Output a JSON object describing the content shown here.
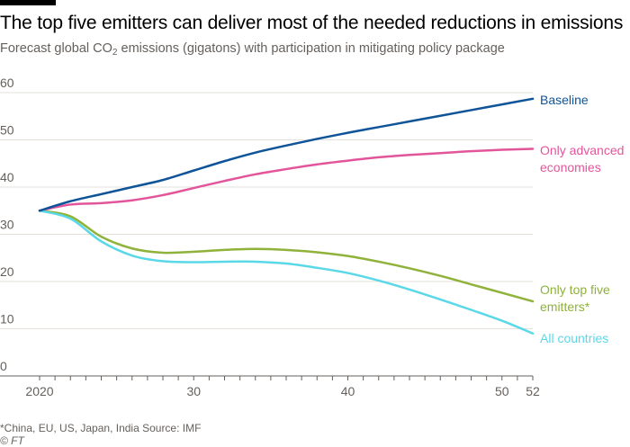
{
  "header": {
    "title": "The top five emitters can deliver most of the needed reductions in emissions",
    "subtitle_pre": "Forecast global CO",
    "subtitle_sub": "2",
    "subtitle_post": " emissions (gigatons) with participation in mitigating policy package"
  },
  "footer": {
    "footnote": "*China, EU, US, Japan, India   Source: IMF",
    "credit": "© FT"
  },
  "colors": {
    "baseline": "#0f5499",
    "advanced": "#e3559a",
    "top_five": "#8fb23a",
    "all": "#5bd8e8",
    "grid": "#e6e0da",
    "axis": "#66605c"
  },
  "chart_data": {
    "type": "line",
    "title": "The top five emitters can deliver most of the needed reductions in emissions",
    "ylabel": "",
    "xlabel": "",
    "xlim": [
      2020,
      2052
    ],
    "ylim": [
      0,
      60
    ],
    "yticks": [
      0,
      10,
      20,
      30,
      40,
      50,
      60
    ],
    "xticks": [
      {
        "value": 2020,
        "label": "2020"
      },
      {
        "value": 2030,
        "label": "30"
      },
      {
        "value": 2040,
        "label": "40"
      },
      {
        "value": 2050,
        "label": "50"
      },
      {
        "value": 2052,
        "label": "52"
      }
    ],
    "grid": true,
    "x": [
      2020,
      2022,
      2024,
      2026,
      2028,
      2030,
      2032,
      2034,
      2036,
      2038,
      2040,
      2042,
      2044,
      2046,
      2048,
      2050,
      2052
    ],
    "series": [
      {
        "key": "baseline",
        "name": "Baseline",
        "label_lines": [
          "Baseline"
        ],
        "values": [
          35,
          37,
          38.5,
          40,
          41.5,
          43.5,
          45.5,
          47.3,
          48.8,
          50.2,
          51.5,
          52.7,
          53.9,
          55.1,
          56.3,
          57.5,
          58.7
        ]
      },
      {
        "key": "advanced",
        "name": "Only advanced economies",
        "label_lines": [
          "Only advanced",
          "economies"
        ],
        "values": [
          35,
          36.3,
          36.6,
          37.2,
          38.3,
          39.8,
          41.3,
          42.7,
          43.8,
          44.8,
          45.6,
          46.3,
          46.8,
          47.2,
          47.6,
          47.9,
          48.1
        ]
      },
      {
        "key": "top_five",
        "name": "Only top five emitters*",
        "label_lines": [
          "Only top five",
          "emitters*"
        ],
        "values": [
          35,
          33.8,
          29.5,
          27,
          26.1,
          26.3,
          26.7,
          26.9,
          26.7,
          26.2,
          25.4,
          24.2,
          22.8,
          21.2,
          19.4,
          17.6,
          15.8
        ]
      },
      {
        "key": "all",
        "name": "All countries",
        "label_lines": [
          "All countries"
        ],
        "values": [
          35,
          33.3,
          28.5,
          25.5,
          24.3,
          24.1,
          24.2,
          24.2,
          23.8,
          22.9,
          21.8,
          20.2,
          18.3,
          16.2,
          14.0,
          11.7,
          9.0
        ]
      }
    ]
  }
}
